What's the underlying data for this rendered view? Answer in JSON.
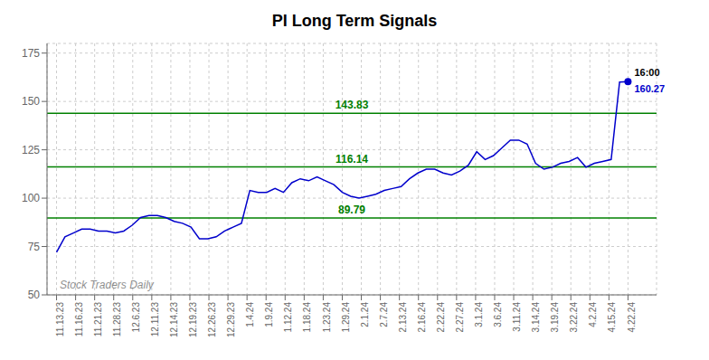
{
  "chart_data": {
    "type": "line",
    "title": "PI Long Term Signals",
    "color": "#0000cc",
    "grid": true,
    "x": [
      0,
      0.441176,
      0.882353,
      1.323529,
      1.764706,
      2.205882,
      2.647059,
      3.088235,
      3.529412,
      3.970588,
      4.411765,
      4.852941,
      5.294118,
      5.735294,
      6.176471,
      6.617647,
      7.058824,
      7.5,
      7.941176,
      8.382353,
      8.823529,
      9.264706,
      9.705882,
      10.147059,
      10.588235,
      11.029412,
      11.470588,
      11.911765,
      12.352941,
      12.794118,
      13.235294,
      13.676471,
      14.117647,
      14.558824,
      15,
      15.441176,
      15.882353,
      16.323529,
      16.764706,
      17.205882,
      17.647059,
      18.088235,
      18.529412,
      18.970588,
      19.411765,
      19.852941,
      20.294118,
      20.735294,
      21.176471,
      21.617647,
      22.058824,
      22.5,
      22.941176,
      23.382353,
      23.823529,
      24.264706,
      24.705882,
      25.147059,
      25.588235,
      26.029412,
      26.470588,
      26.911765,
      27.352941,
      27.794118,
      28.235294,
      28.676471,
      29.117647,
      29.558824,
      30
    ],
    "values": [
      72,
      80,
      82,
      84,
      84,
      83,
      83,
      82,
      83,
      86,
      90,
      91,
      91,
      90,
      88,
      87,
      85,
      79,
      79,
      80,
      83,
      85,
      87,
      104,
      103,
      103,
      105,
      103,
      108,
      110,
      109,
      111,
      109,
      107,
      103,
      101,
      100,
      101,
      102,
      104,
      105,
      106,
      110,
      113,
      115,
      115,
      113,
      112,
      114,
      117,
      124,
      120,
      122,
      126,
      130,
      130,
      128,
      118,
      115,
      116,
      118,
      119,
      121,
      116,
      118,
      119,
      120,
      160,
      160.27
    ],
    "xlim": [
      -0.5,
      31.5
    ],
    "xticks": [
      {
        "value": 0,
        "label": "11.13.23"
      },
      {
        "value": 1,
        "label": "11.16.23"
      },
      {
        "value": 2,
        "label": "11.21.23"
      },
      {
        "value": 3,
        "label": "11.28.23"
      },
      {
        "value": 4,
        "label": "12.6.23"
      },
      {
        "value": 5,
        "label": "12.11.23"
      },
      {
        "value": 6,
        "label": "12.14.23"
      },
      {
        "value": 7,
        "label": "12.19.23"
      },
      {
        "value": 8,
        "label": "12.26.23"
      },
      {
        "value": 9,
        "label": "12.29.23"
      },
      {
        "value": 10,
        "label": "1.4.24"
      },
      {
        "value": 11,
        "label": "1.9.24"
      },
      {
        "value": 12,
        "label": "1.12.24"
      },
      {
        "value": 13,
        "label": "1.18.24"
      },
      {
        "value": 14,
        "label": "1.23.24"
      },
      {
        "value": 15,
        "label": "1.29.24"
      },
      {
        "value": 16,
        "label": "2.1.24"
      },
      {
        "value": 17,
        "label": "2.7.24"
      },
      {
        "value": 18,
        "label": "2.13.24"
      },
      {
        "value": 19,
        "label": "2.16.24"
      },
      {
        "value": 20,
        "label": "2.22.24"
      },
      {
        "value": 21,
        "label": "2.27.24"
      },
      {
        "value": 22,
        "label": "3.1.24"
      },
      {
        "value": 23,
        "label": "3.6.24"
      },
      {
        "value": 24,
        "label": "3.11.24"
      },
      {
        "value": 25,
        "label": "3.14.24"
      },
      {
        "value": 26,
        "label": "3.19.24"
      },
      {
        "value": 27,
        "label": "3.22.24"
      },
      {
        "value": 28,
        "label": "4.2.24"
      },
      {
        "value": 29,
        "label": "4.15.24"
      },
      {
        "value": 30,
        "label": "4.22.24"
      }
    ],
    "ylim": [
      50,
      180
    ],
    "yticks": [
      50,
      75,
      100,
      125,
      150,
      175
    ],
    "reference_lines": [
      {
        "value": 89.79,
        "label": "89.79",
        "color": "#008000"
      },
      {
        "value": 116.14,
        "label": "116.14",
        "color": "#008000"
      },
      {
        "value": 143.83,
        "label": "143.83",
        "color": "#008000"
      }
    ],
    "annotations": [
      "Stock Traders Daily",
      "16:00",
      "160.27"
    ]
  }
}
